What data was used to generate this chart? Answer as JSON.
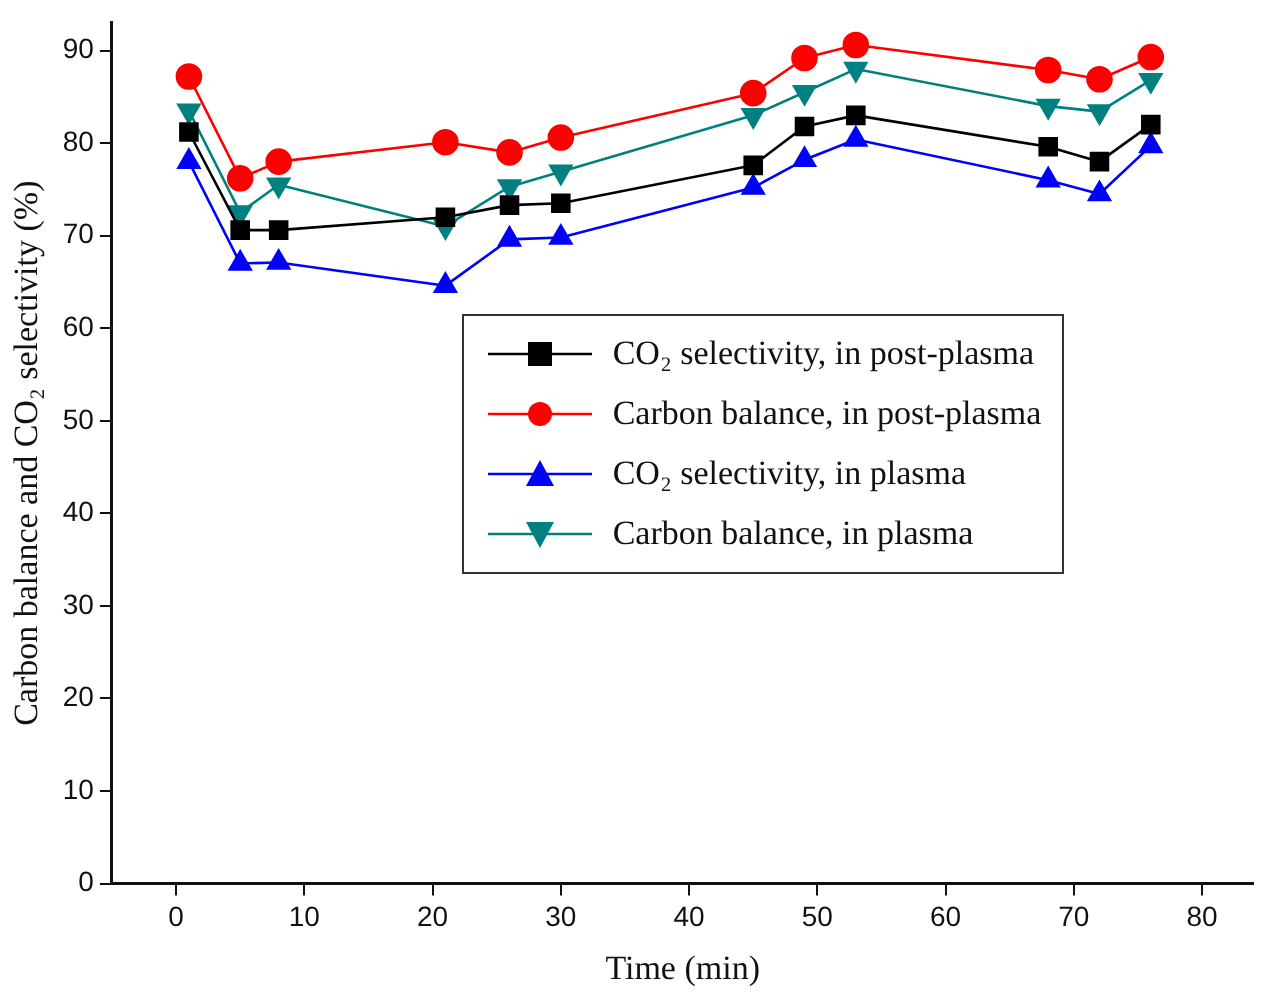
{
  "chart_data": {
    "type": "line",
    "xlabel": "Time (min)",
    "ylabel": "Carbon balance and CO₂ selectivity (%)",
    "x": [
      1,
      5,
      8,
      21,
      26,
      30,
      45,
      49,
      53,
      68,
      72,
      76
    ],
    "xlim": [
      -5,
      84
    ],
    "xticks": [
      0,
      10,
      20,
      30,
      40,
      50,
      60,
      70,
      80
    ],
    "ylim": [
      0,
      93
    ],
    "yticks": [
      0,
      10,
      20,
      30,
      40,
      50,
      60,
      70,
      80,
      90
    ],
    "grid": false,
    "legend": "center",
    "line_style": "solid",
    "series": [
      {
        "name": "CO₂ selectivity, in post-plasma",
        "color": "#000000",
        "marker": "square",
        "values": [
          81.2,
          70.6,
          70.6,
          72,
          73.3,
          73.5,
          77.6,
          81.8,
          83,
          79.6,
          78,
          82
        ]
      },
      {
        "name": "Carbon balance, in post-plasma",
        "color": "#ff0000",
        "marker": "circle",
        "values": [
          87.2,
          76.2,
          78,
          80.1,
          79,
          80.6,
          85.4,
          89.2,
          90.6,
          87.9,
          86.9,
          89.3
        ]
      },
      {
        "name": "CO₂ selectivity, in plasma",
        "color": "#0000ff",
        "marker": "triangle",
        "values": [
          78,
          67,
          67.1,
          64.6,
          69.6,
          69.8,
          75.2,
          78.2,
          80.4,
          76,
          74.5,
          79.7
        ]
      },
      {
        "name": "Carbon balance, in plasma",
        "color": "#008080",
        "marker": "triangle-down",
        "values": [
          83.5,
          72.5,
          75.5,
          71,
          75.3,
          76.9,
          83,
          85.5,
          88,
          84,
          83.4,
          86.8
        ]
      }
    ]
  }
}
